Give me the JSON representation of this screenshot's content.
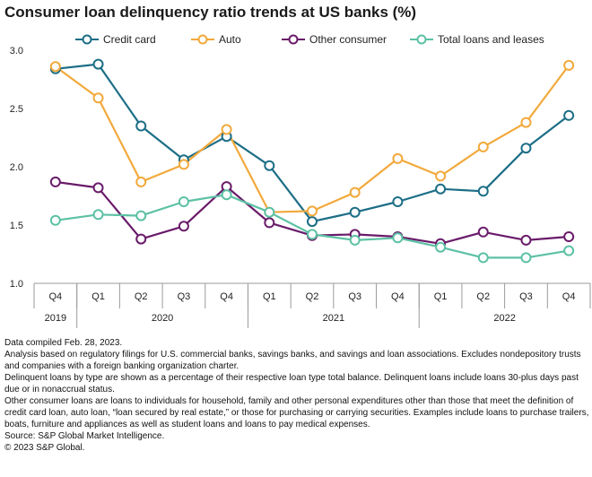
{
  "chart_data": {
    "type": "line",
    "title": "Consumer loan delinquency ratio trends at US banks (%)",
    "categories": [
      "Q4",
      "Q1",
      "Q2",
      "Q3",
      "Q4",
      "Q1",
      "Q2",
      "Q3",
      "Q4",
      "Q1",
      "Q2",
      "Q3",
      "Q4"
    ],
    "year_groups": [
      {
        "label": "2019",
        "count": 1
      },
      {
        "label": "2020",
        "count": 4
      },
      {
        "label": "2021",
        "count": 4
      },
      {
        "label": "2022",
        "count": 4
      }
    ],
    "ylim": [
      1.0,
      3.0
    ],
    "yticks": [
      "3.0",
      "2.5",
      "2.0",
      "1.5",
      "1.0"
    ],
    "legend_position": "top",
    "grid": false,
    "series": [
      {
        "name": "Credit card",
        "color": "#1c6e86",
        "values": [
          2.84,
          2.88,
          2.35,
          2.06,
          2.26,
          2.01,
          1.53,
          1.61,
          1.7,
          1.81,
          1.79,
          2.16,
          2.44
        ]
      },
      {
        "name": "Auto",
        "color": "#f2a93b",
        "values": [
          2.86,
          2.59,
          1.87,
          2.02,
          2.32,
          1.61,
          1.62,
          1.78,
          2.07,
          1.92,
          2.17,
          2.38,
          2.87
        ]
      },
      {
        "name": "Other consumer",
        "color": "#6a1b6a",
        "values": [
          1.87,
          1.82,
          1.38,
          1.49,
          1.83,
          1.52,
          1.41,
          1.42,
          1.4,
          1.34,
          1.44,
          1.37,
          1.4
        ]
      },
      {
        "name": "Total loans and leases",
        "color": "#5cc1a4",
        "values": [
          1.54,
          1.59,
          1.58,
          1.7,
          1.76,
          1.61,
          1.42,
          1.37,
          1.39,
          1.31,
          1.22,
          1.22,
          1.28
        ]
      }
    ]
  },
  "notes": [
    "Data compiled Feb. 28, 2023.",
    "Analysis based on regulatory filings for U.S. commercial banks, savings banks, and savings and loan associations. Excludes nondepository trusts and companies with a foreign banking organization charter.",
    "Delinquent loans by type are shown as a percentage of their respective loan type total balance. Delinquent loans include loans 30-plus days past due or in nonaccrual status.",
    "Other consumer loans are loans to individuals for household, family and other personal expenditures other than those that meet the definition of credit card loan, auto loan, “loan secured by real estate,” or those for purchasing or carrying securities. Examples include loans to purchase trailers, boats, furniture and appliances as well as student loans and loans to pay medical expenses.",
    "Source: S&P Global Market Intelligence.",
    "© 2023 S&P Global."
  ]
}
